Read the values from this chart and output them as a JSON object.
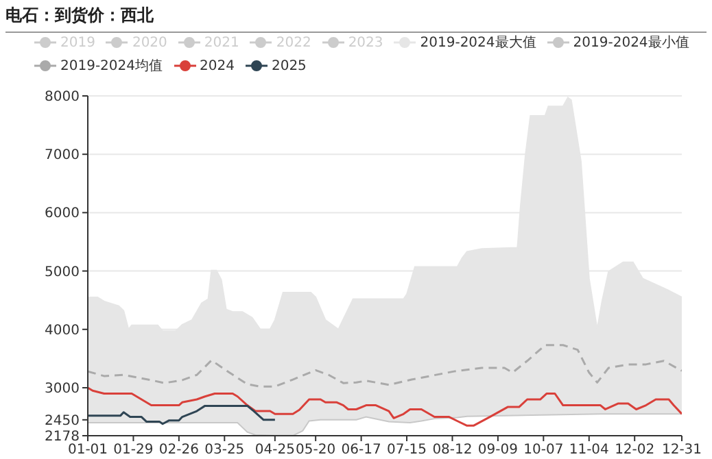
{
  "chart_data": {
    "type": "line",
    "title": "电石：到货价：西北",
    "legend": "top",
    "grid": "y",
    "marker": "none",
    "ylim": [
      2178,
      8000
    ],
    "yticks": [
      2178,
      2450,
      3000,
      4000,
      5000,
      6000,
      7000,
      8000
    ],
    "xlim": [
      "--01-01",
      "--12-31"
    ],
    "xticks": [
      {
        "value": "--01-01",
        "label": "01-01"
      },
      {
        "value": "--01-29",
        "label": "01-29"
      },
      {
        "value": "--02-26",
        "label": "02-26"
      },
      {
        "value": "--03-25",
        "label": "03-25"
      },
      {
        "value": "--04-25",
        "label": "04-25"
      },
      {
        "value": "--05-20",
        "label": "05-20"
      },
      {
        "value": "--06-17",
        "label": "06-17"
      },
      {
        "value": "--07-15",
        "label": "07-15"
      },
      {
        "value": "--08-12",
        "label": "08-12"
      },
      {
        "value": "--09-09",
        "label": "09-09"
      },
      {
        "value": "--10-07",
        "label": "10-07"
      },
      {
        "value": "--11-04",
        "label": "11-04"
      },
      {
        "value": "--12-02",
        "label": "12-02"
      },
      {
        "value": "--12-31",
        "label": "12-31"
      }
    ],
    "series": [
      {
        "name": "2019",
        "color": "#cccccc"
      },
      {
        "name": "2020",
        "color": "#cccccc"
      },
      {
        "name": "2021",
        "color": "#cccccc"
      },
      {
        "name": "2022",
        "color": "#cccccc"
      },
      {
        "name": "2023",
        "color": "#cccccc"
      },
      {
        "name": "2019-2024最大值",
        "color": "#e6e6e6",
        "type": "area",
        "x": [
          "--01-01",
          "--01-07",
          "--01-11",
          "--01-20",
          "--01-23",
          "--01-26",
          "--01-28",
          "--02-13",
          "--02-16",
          "--02-24",
          "--02-28",
          "--03-05",
          "--03-11",
          "--03-15",
          "--03-17",
          "--03-20",
          "--03-23",
          "--03-26",
          "--03-30",
          "--04-05",
          "--04-11",
          "--04-16",
          "--04-22",
          "--04-25",
          "--04-30",
          "--05-17",
          "--05-20",
          "--05-26",
          "--06-03",
          "--06-12",
          "--07-13",
          "--07-15",
          "--07-20",
          "--08-15",
          "--08-18",
          "--08-21",
          "--08-30",
          "--09-21",
          "--09-23",
          "--09-26",
          "--09-29",
          "--10-08",
          "--10-10",
          "--10-19",
          "--10-22",
          "--10-24",
          "--10-30",
          "--11-04",
          "--11-09",
          "--11-12",
          "--11-16",
          "--11-25",
          "--12-01",
          "--12-07",
          "--12-22",
          "--12-31"
        ],
        "values": [
          4550,
          4550,
          4480,
          4400,
          4320,
          4000,
          4070,
          4070,
          3970,
          3970,
          4080,
          4160,
          4450,
          4520,
          5010,
          5010,
          4850,
          4340,
          4300,
          4300,
          4200,
          4000,
          4000,
          4160,
          4630,
          4630,
          4550,
          4160,
          4000,
          4520,
          4520,
          4600,
          5070,
          5070,
          5220,
          5330,
          5380,
          5400,
          6130,
          7000,
          7660,
          7660,
          7820,
          7820,
          7970,
          7930,
          6880,
          4870,
          4000,
          4480,
          4990,
          5150,
          5150,
          4870,
          4680,
          4550
        ]
      },
      {
        "name": "2019-2024最小值",
        "color": "#c8c8c8",
        "type": "area",
        "x": [
          "--01-01",
          "--04-02",
          "--04-08",
          "--04-13",
          "--04-25",
          "--05-06",
          "--05-12",
          "--05-16",
          "--05-23",
          "--06-14",
          "--06-20",
          "--07-04",
          "--07-17",
          "--07-24",
          "--08-01",
          "--08-15",
          "--08-21",
          "--11-11",
          "--12-31"
        ],
        "values": [
          2400,
          2400,
          2240,
          2190,
          2180,
          2180,
          2260,
          2430,
          2450,
          2450,
          2500,
          2420,
          2400,
          2430,
          2470,
          2490,
          2510,
          2550,
          2550
        ]
      },
      {
        "name": "2019-2024均值",
        "color": "#aaaaaa",
        "line_style": "dashed",
        "x": [
          "--01-01",
          "--01-11",
          "--01-23",
          "--02-09",
          "--02-17",
          "--02-28",
          "--03-08",
          "--03-17",
          "--03-28",
          "--04-08",
          "--04-16",
          "--04-25",
          "--05-06",
          "--05-20",
          "--05-28",
          "--06-06",
          "--06-14",
          "--06-20",
          "--07-04",
          "--07-18",
          "--08-13",
          "--08-30",
          "--09-13",
          "--09-18",
          "--09-27",
          "--10-08",
          "--10-19",
          "--10-28",
          "--11-04",
          "--11-09",
          "--11-16",
          "--11-28",
          "--12-09",
          "--12-20",
          "--12-31"
        ],
        "values": [
          3280,
          3200,
          3220,
          3130,
          3080,
          3130,
          3220,
          3470,
          3260,
          3060,
          3020,
          3020,
          3140,
          3300,
          3220,
          3080,
          3090,
          3120,
          3050,
          3140,
          3280,
          3340,
          3340,
          3260,
          3460,
          3730,
          3730,
          3650,
          3260,
          3090,
          3340,
          3400,
          3400,
          3460,
          3290
        ]
      },
      {
        "name": "2024",
        "color": "#d9403a",
        "x": [
          "--01-01",
          "--01-04",
          "--01-11",
          "--01-28",
          "--02-03",
          "--02-09",
          "--02-26",
          "--02-28",
          "--03-08",
          "--03-13",
          "--03-19",
          "--03-30",
          "--04-02",
          "--04-08",
          "--04-13",
          "--04-22",
          "--04-25",
          "--05-06",
          "--05-10",
          "--05-16",
          "--05-23",
          "--05-26",
          "--06-02",
          "--06-06",
          "--06-09",
          "--06-14",
          "--06-20",
          "--06-26",
          "--07-04",
          "--07-07",
          "--07-13",
          "--07-17",
          "--07-24",
          "--08-01",
          "--08-10",
          "--08-15",
          "--08-21",
          "--08-25",
          "--09-04",
          "--09-15",
          "--09-22",
          "--09-27",
          "--10-05",
          "--10-09",
          "--10-14",
          "--10-19",
          "--11-11",
          "--11-14",
          "--11-22",
          "--11-28",
          "--12-03",
          "--12-09",
          "--12-15",
          "--12-23",
          "--12-26",
          "--12-31"
        ],
        "values": [
          3000,
          2950,
          2900,
          2900,
          2800,
          2700,
          2700,
          2750,
          2800,
          2850,
          2900,
          2900,
          2850,
          2700,
          2600,
          2600,
          2550,
          2550,
          2620,
          2800,
          2800,
          2750,
          2750,
          2700,
          2630,
          2630,
          2700,
          2700,
          2600,
          2480,
          2550,
          2630,
          2630,
          2500,
          2500,
          2430,
          2350,
          2350,
          2500,
          2670,
          2670,
          2800,
          2800,
          2900,
          2900,
          2700,
          2700,
          2630,
          2730,
          2730,
          2630,
          2700,
          2800,
          2800,
          2700,
          2550
        ]
      },
      {
        "name": "2025",
        "color": "#2f4554",
        "x": [
          "--01-01",
          "--01-21",
          "--01-23",
          "--01-27",
          "--02-03",
          "--02-06",
          "--02-14",
          "--02-16",
          "--02-20",
          "--02-26",
          "--02-28",
          "--03-08",
          "--03-13",
          "--04-08",
          "--04-12",
          "--04-18",
          "--04-25"
        ],
        "values": [
          2520,
          2520,
          2580,
          2500,
          2500,
          2420,
          2420,
          2380,
          2440,
          2440,
          2500,
          2600,
          2690,
          2690,
          2600,
          2450,
          2450
        ]
      }
    ]
  }
}
